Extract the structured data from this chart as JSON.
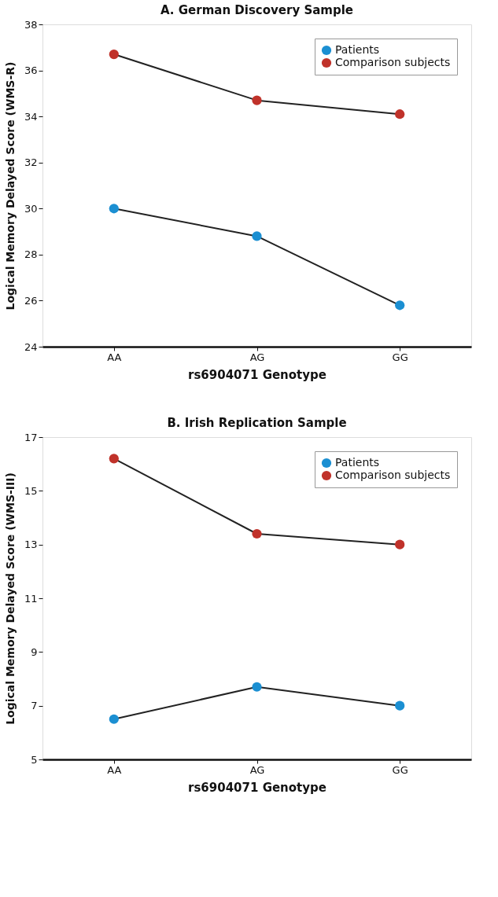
{
  "chart_data": [
    {
      "type": "line",
      "title": "A. German Discovery Sample",
      "xlabel": "rs6904071 Genotype",
      "ylabel": "Logical Memory Delayed Score (WMS-R)",
      "categories": [
        "AA",
        "AG",
        "GG"
      ],
      "ylim": [
        24,
        38
      ],
      "yticks": [
        24,
        26,
        28,
        30,
        32,
        34,
        36,
        38
      ],
      "grid": false,
      "legend": "top right",
      "marker": "circle",
      "line_style": "solid",
      "series": [
        {
          "name": "Patients",
          "color": "#1b8fd2",
          "values": [
            30.0,
            28.8,
            25.8
          ]
        },
        {
          "name": "Comparison subjects",
          "color": "#c0322a",
          "values": [
            36.7,
            34.7,
            34.1
          ]
        }
      ]
    },
    {
      "type": "line",
      "title": "B. Irish Replication Sample",
      "xlabel": "rs6904071 Genotype",
      "ylabel": "Logical Memory Delayed Score (WMS-III)",
      "categories": [
        "AA",
        "AG",
        "GG"
      ],
      "ylim": [
        5,
        17
      ],
      "yticks": [
        5,
        7,
        9,
        11,
        13,
        15,
        17
      ],
      "grid": false,
      "legend": "top right",
      "marker": "circle",
      "line_style": "solid",
      "series": [
        {
          "name": "Patients",
          "color": "#1b8fd2",
          "values": [
            6.5,
            7.7,
            7.0
          ]
        },
        {
          "name": "Comparison subjects",
          "color": "#c0322a",
          "values": [
            16.2,
            13.4,
            13.0
          ]
        }
      ]
    }
  ]
}
